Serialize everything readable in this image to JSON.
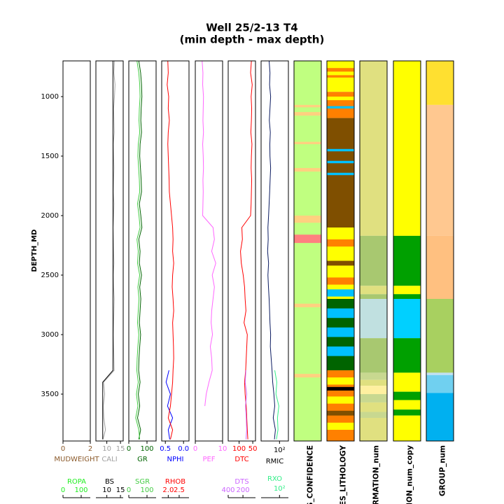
{
  "chart_data": {
    "type": "well_log",
    "title": "Well 25/2-13 T4",
    "subtitle": "(min depth - max depth)",
    "ylabel": "DEPTH_MD",
    "ylim": [
      700,
      3894
    ],
    "yticks": [
      1000,
      1500,
      2000,
      2500,
      3000,
      3500
    ],
    "depth": [
      700,
      800,
      900,
      1000,
      1100,
      1200,
      1300,
      1400,
      1500,
      1600,
      1700,
      1800,
      1900,
      2000,
      2100,
      2200,
      2300,
      2400,
      2500,
      2600,
      2700,
      2800,
      2900,
      3000,
      3100,
      3200,
      3300,
      3400,
      3500,
      3600,
      3700,
      3800,
      3880
    ],
    "tracks": [
      {
        "curves": [
          {
            "name": "MUDWEIGHT",
            "color": "#8b5a2b",
            "xlim": [
              0,
              2
            ],
            "xticks": [
              0,
              2
            ]
          },
          {
            "name": "ROPA",
            "color": "#22ee22",
            "xlim": [
              0,
              150
            ],
            "xticks": [
              0,
              100
            ]
          }
        ]
      },
      {
        "curves": [
          {
            "name": "CALI",
            "color": "#a0a0a0",
            "xlim": [
              6,
              16
            ],
            "xticks": [
              10,
              15
            ],
            "values": [
              12.8,
              12.6,
              13,
              12.8,
              12.5,
              12.6,
              12.7,
              12.4,
              12.5,
              12.6,
              12.5,
              12.4,
              12.6,
              12.5,
              12.3,
              12.4,
              12.5,
              12.6,
              12.4,
              12.5,
              12.7,
              12.6,
              12.5,
              12.4,
              12.5,
              12.6,
              12.7,
              8.8,
              9.2,
              8.7,
              8.9,
              9.5,
              8.6
            ]
          },
          {
            "name": "BS",
            "color": "#000000",
            "xlim": [
              6,
              16
            ],
            "xticks": [
              10,
              15
            ],
            "values": [
              12.25,
              12.25,
              12.25,
              12.25,
              12.25,
              12.25,
              12.25,
              12.25,
              12.25,
              12.25,
              12.25,
              12.25,
              12.25,
              12.25,
              12.25,
              12.25,
              12.25,
              12.25,
              12.25,
              12.25,
              12.25,
              12.25,
              12.25,
              12.25,
              12.25,
              12.25,
              12.25,
              8.5,
              8.5,
              8.5,
              8.5,
              8.5,
              8.5
            ]
          }
        ]
      },
      {
        "curves": [
          {
            "name": "GR",
            "color": "#006400",
            "xlim": [
              0,
              150
            ],
            "xticks": [
              0,
              100
            ],
            "values": [
              55,
              65,
              70,
              72,
              68,
              66,
              70,
              62,
              60,
              64,
              68,
              70,
              58,
              66,
              72,
              55,
              62,
              58,
              70,
              60,
              66,
              62,
              58,
              65,
              60,
              56,
              54,
              62,
              52,
              60,
              48,
              65,
              55
            ]
          },
          {
            "name": "SGR",
            "color": "#44cc44",
            "xlim": [
              0,
              150
            ],
            "xticks": [
              0,
              100
            ],
            "values": [
              45,
              55,
              60,
              62,
              58,
              56,
              60,
              52,
              50,
              54,
              58,
              60,
              48,
              56,
              62,
              45,
              52,
              48,
              60,
              50,
              56,
              52,
              48,
              55,
              50,
              46,
              44,
              52,
              42,
              50,
              38,
              55,
              60
            ]
          }
        ]
      },
      {
        "curves": [
          {
            "name": "NPHI",
            "color": "#0000ff",
            "xlim": [
              0.6,
              -0.15
            ],
            "xticks": [
              0.5,
              {
                "value": 0,
                "label": "0.0"
              }
            ],
            "values": [
              null,
              null,
              null,
              null,
              null,
              null,
              null,
              null,
              null,
              null,
              null,
              null,
              null,
              null,
              null,
              null,
              null,
              null,
              null,
              null,
              null,
              null,
              null,
              null,
              null,
              null,
              0.4,
              0.48,
              0.36,
              0.44,
              0.3,
              0.42,
              0.38
            ]
          },
          {
            "name": "RHOB",
            "color": "#ff0000",
            "xlim": [
              1.7,
              2.95
            ],
            "xticks": [
              {
                "value": 2,
                "label": "2.0"
              },
              2.5
            ],
            "values": [
              1.98,
              2.0,
              1.95,
              2.02,
              2.0,
              2.05,
              2.0,
              1.98,
              2.0,
              2.02,
              2.04,
              2.05,
              2.1,
              2.15,
              2.2,
              2.22,
              2.2,
              2.25,
              2.2,
              2.18,
              2.22,
              2.25,
              2.2,
              2.22,
              2.24,
              2.25,
              2.22,
              2.2,
              2.15,
              2.1,
              2.0,
              2.2,
              2.1
            ]
          }
        ]
      },
      {
        "curves": [
          {
            "name": "PEF",
            "color": "#ff66ff",
            "xlim": [
              0,
              10
            ],
            "xticks": [
              0,
              10
            ],
            "values": [
              2.5,
              2.8,
              2.7,
              3,
              2.9,
              2.8,
              3,
              2.7,
              2.9,
              3,
              2.8,
              2.9,
              2.8,
              2.7,
              6.5,
              7,
              6,
              7.5,
              6.2,
              7,
              6.5,
              6,
              5.8,
              6.3,
              5.5,
              6,
              6.2,
              5,
              4,
              3.5,
              null,
              null,
              null
            ]
          }
        ]
      },
      {
        "curves": [
          {
            "name": "DTC",
            "color": "#ff0000",
            "xlim": [
              140,
              40
            ],
            "xticks": [
              100,
              50
            ],
            "values": [
              55,
              58,
              52,
              56,
              54,
              55,
              57,
              53,
              55,
              56,
              54,
              55,
              56,
              58,
              90,
              88,
              95,
              92,
              85,
              80,
              78,
              75,
              82,
              70,
              72,
              74,
              76,
              80,
              78,
              74,
              72,
              70,
              68
            ]
          },
          {
            "name": "DTS",
            "color": "#cc66ff",
            "xlim": [
              400,
              30
            ],
            "xticks": [
              400,
              200
            ],
            "values": [
              null,
              null,
              null,
              null,
              null,
              null,
              null,
              null,
              null,
              null,
              null,
              null,
              null,
              null,
              null,
              null,
              null,
              null,
              null,
              null,
              null,
              null,
              null,
              null,
              null,
              null,
              160,
              170,
              150,
              165,
              155,
              150,
              158
            ]
          }
        ]
      },
      {
        "curves": [
          {
            "name": "RMIC",
            "color": "#0a1a60",
            "xscale": "log",
            "xlim": [
              0.2,
              2000
            ],
            "xticks": [
              {
                "value": 100,
                "label": "10²"
              }
            ],
            "values": [
              3,
              4,
              3.5,
              5,
              4,
              3.2,
              4.5,
              3.8,
              4,
              5,
              4.2,
              3.6,
              3,
              2.5,
              2,
              2.2,
              1.8,
              2.5,
              2,
              2.4,
              3,
              3.5,
              4,
              5,
              4.5,
              6,
              8,
              10,
              15,
              20,
              12,
              25,
              18
            ]
          },
          {
            "name": "RXO",
            "color": "#33ee88",
            "xscale": "log",
            "xlim": [
              0.2,
              2000
            ],
            "xticks": [
              {
                "value": 100,
                "label": "10²"
              }
            ],
            "values": [
              null,
              null,
              null,
              null,
              null,
              null,
              null,
              null,
              null,
              null,
              null,
              null,
              null,
              null,
              null,
              null,
              null,
              null,
              null,
              null,
              null,
              null,
              null,
              null,
              null,
              null,
              20,
              40,
              30,
              80,
              50,
              60,
              35
            ]
          }
        ]
      }
    ],
    "zone_tracks": [
      {
        "name": "S_CONFIDENCE",
        "intervals": [
          {
            "top": 700,
            "base": 3894,
            "color": "#c0ff80"
          },
          {
            "top": 1070,
            "base": 1090,
            "color": "#ffd080"
          },
          {
            "top": 1130,
            "base": 1160,
            "color": "#ffd080"
          },
          {
            "top": 1380,
            "base": 1400,
            "color": "#ffd080"
          },
          {
            "top": 1600,
            "base": 1630,
            "color": "#ffd080"
          },
          {
            "top": 2000,
            "base": 2060,
            "color": "#ffd080"
          },
          {
            "top": 2160,
            "base": 2230,
            "color": "#ff8080"
          },
          {
            "top": 2740,
            "base": 2770,
            "color": "#ffd080"
          },
          {
            "top": 3330,
            "base": 3360,
            "color": "#ffd080"
          }
        ]
      },
      {
        "name": "ES_LITHOLOGY",
        "intervals": [
          {
            "top": 700,
            "base": 960,
            "color": "#ffff00"
          },
          {
            "top": 760,
            "base": 790,
            "color": "#ff8000"
          },
          {
            "top": 820,
            "base": 840,
            "color": "#ff8000"
          },
          {
            "top": 960,
            "base": 1180,
            "color": "#ff8000"
          },
          {
            "top": 1000,
            "base": 1030,
            "color": "#ffff00"
          },
          {
            "top": 1080,
            "base": 1100,
            "color": "#00c0ff"
          },
          {
            "top": 1180,
            "base": 2100,
            "color": "#7f4f00"
          },
          {
            "top": 1440,
            "base": 1460,
            "color": "#00c0ff"
          },
          {
            "top": 1540,
            "base": 1560,
            "color": "#00c0ff"
          },
          {
            "top": 1640,
            "base": 1660,
            "color": "#00c0ff"
          },
          {
            "top": 2100,
            "base": 2700,
            "color": "#ffff00"
          },
          {
            "top": 2200,
            "base": 2260,
            "color": "#ff8000"
          },
          {
            "top": 2380,
            "base": 2420,
            "color": "#7f4f00"
          },
          {
            "top": 2520,
            "base": 2580,
            "color": "#ff8000"
          },
          {
            "top": 2620,
            "base": 2680,
            "color": "#00c0ff"
          },
          {
            "top": 2700,
            "base": 3300,
            "color": "#006400"
          },
          {
            "top": 2780,
            "base": 2860,
            "color": "#00c0ff"
          },
          {
            "top": 2940,
            "base": 3020,
            "color": "#00c0ff"
          },
          {
            "top": 3100,
            "base": 3180,
            "color": "#00c0ff"
          },
          {
            "top": 3300,
            "base": 3894,
            "color": "#ff8000"
          },
          {
            "top": 3360,
            "base": 3420,
            "color": "#ffff00"
          },
          {
            "top": 3440,
            "base": 3470,
            "color": "#000000"
          },
          {
            "top": 3520,
            "base": 3580,
            "color": "#ffff00"
          },
          {
            "top": 3640,
            "base": 3680,
            "color": "#7f4f00"
          },
          {
            "top": 3740,
            "base": 3800,
            "color": "#ffff00"
          }
        ]
      },
      {
        "name": "RMATION_num",
        "intervals": [
          {
            "top": 700,
            "base": 2170,
            "color": "#e0e080"
          },
          {
            "top": 2170,
            "base": 2590,
            "color": "#a8c870"
          },
          {
            "top": 2590,
            "base": 2660,
            "color": "#e0e080"
          },
          {
            "top": 2660,
            "base": 2700,
            "color": "#a8c870"
          },
          {
            "top": 2700,
            "base": 3030,
            "color": "#c0e0e0"
          },
          {
            "top": 3030,
            "base": 3320,
            "color": "#a8c870"
          },
          {
            "top": 3320,
            "base": 3380,
            "color": "#c8d890"
          },
          {
            "top": 3380,
            "base": 3430,
            "color": "#e0e080"
          },
          {
            "top": 3430,
            "base": 3500,
            "color": "#fff0a0"
          },
          {
            "top": 3500,
            "base": 3570,
            "color": "#c8d890"
          },
          {
            "top": 3570,
            "base": 3650,
            "color": "#e0e080"
          },
          {
            "top": 3650,
            "base": 3700,
            "color": "#c8d890"
          },
          {
            "top": 3700,
            "base": 3894,
            "color": "#e0e080"
          }
        ]
      },
      {
        "name": "TION_num_copy",
        "intervals": [
          {
            "top": 700,
            "base": 2170,
            "color": "#ffff00"
          },
          {
            "top": 2170,
            "base": 2590,
            "color": "#00a000"
          },
          {
            "top": 2590,
            "base": 2660,
            "color": "#ffff00"
          },
          {
            "top": 2660,
            "base": 2700,
            "color": "#00a000"
          },
          {
            "top": 2700,
            "base": 3030,
            "color": "#00d0ff"
          },
          {
            "top": 3030,
            "base": 3320,
            "color": "#00a000"
          },
          {
            "top": 3320,
            "base": 3480,
            "color": "#ffff00"
          },
          {
            "top": 3480,
            "base": 3550,
            "color": "#00a000"
          },
          {
            "top": 3550,
            "base": 3630,
            "color": "#ffff00"
          },
          {
            "top": 3630,
            "base": 3680,
            "color": "#00a000"
          },
          {
            "top": 3680,
            "base": 3894,
            "color": "#ffff00"
          }
        ]
      },
      {
        "name": "GROUP_num",
        "intervals": [
          {
            "top": 700,
            "base": 1070,
            "color": "#ffe030"
          },
          {
            "top": 1070,
            "base": 2170,
            "color": "#ffc890"
          },
          {
            "top": 2170,
            "base": 2700,
            "color": "#ffc080"
          },
          {
            "top": 2700,
            "base": 3320,
            "color": "#a8d060"
          },
          {
            "top": 3320,
            "base": 3340,
            "color": "#c0e0f0"
          },
          {
            "top": 3340,
            "base": 3490,
            "color": "#70d0f0"
          },
          {
            "top": 3490,
            "base": 3894,
            "color": "#00b0f0"
          }
        ]
      }
    ]
  }
}
